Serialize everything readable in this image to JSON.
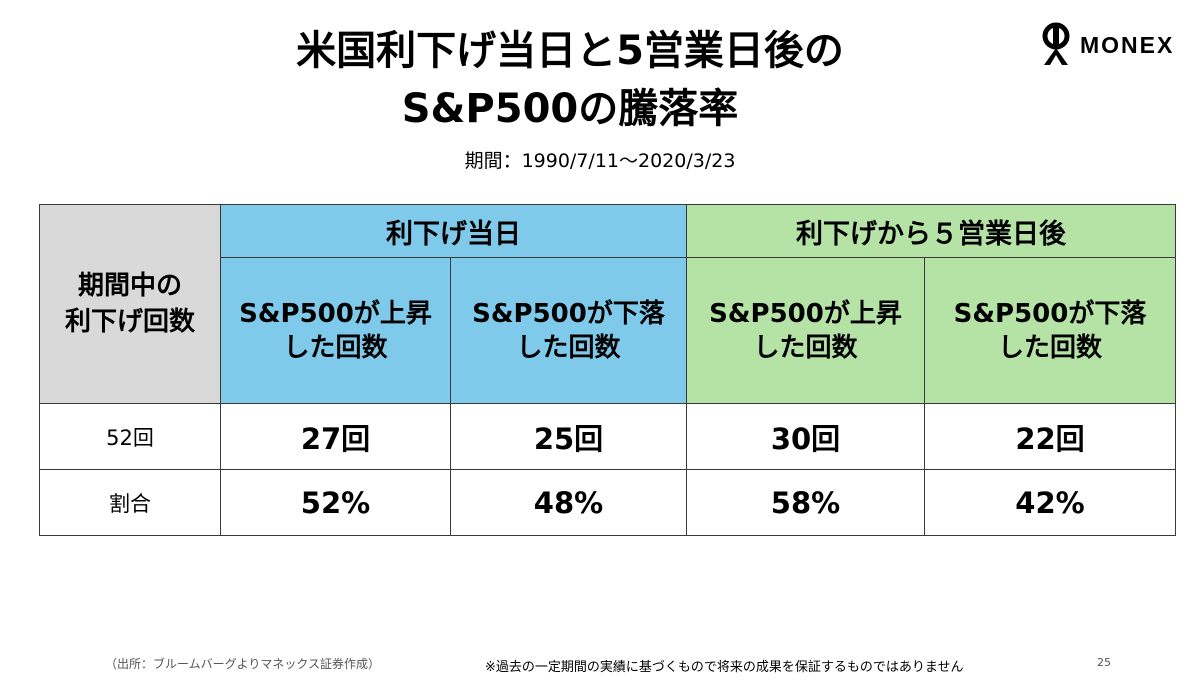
{
  "title": {
    "line1": "米国利下げ当日と5営業日後の",
    "line2": "S&P500の騰落率"
  },
  "period": "期間：1990/7/11～2020/3/23",
  "logo": {
    "text": "MONEX",
    "icon": "monex-logo-icon"
  },
  "table": {
    "corner_header": [
      "期間中の",
      "利下げ回数"
    ],
    "group_headers": {
      "same_day": "利下げ当日",
      "five_days_after": "利下げから５営業日後"
    },
    "sub_headers": {
      "up": [
        "S&P500が上昇",
        "した回数"
      ],
      "down": [
        "S&P500が下落",
        "した回数"
      ]
    },
    "rows": [
      {
        "label": "52回",
        "same_day_up": "27回",
        "same_day_down": "25回",
        "after_up": "30回",
        "after_down": "22回"
      },
      {
        "label": "割合",
        "same_day_up": "52%",
        "same_day_down": "48%",
        "after_up": "58%",
        "after_down": "42%"
      }
    ]
  },
  "colors": {
    "blue_header": "#7fcaea",
    "green_header": "#b5e3a6",
    "gray_header": "#d9d9d9"
  },
  "footer": {
    "source": "（出所：ブルームバーグよりマネックス証券作成）",
    "disclaimer": "※過去の一定期間の実績に基づくもので将来の成果を保証するものではありません",
    "page_number": "25"
  }
}
